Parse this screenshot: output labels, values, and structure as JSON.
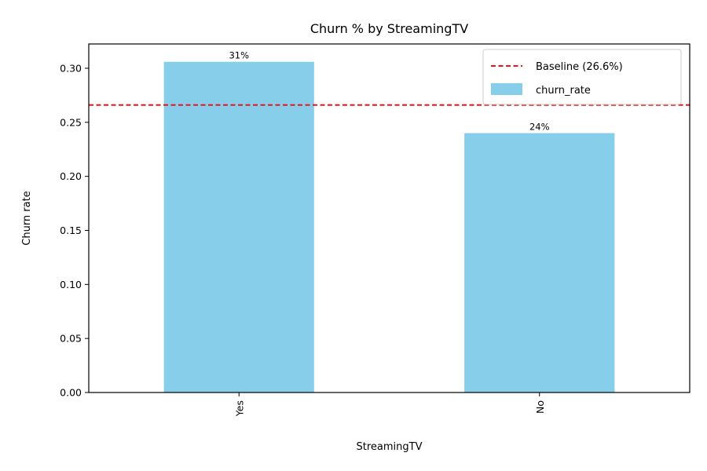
{
  "chart_data": {
    "type": "bar",
    "title": "Churn % by StreamingTV",
    "xlabel": "StreamingTV",
    "ylabel": "Churn rate",
    "categories": [
      "Yes",
      "No"
    ],
    "series": [
      {
        "name": "churn_rate",
        "values": [
          0.306,
          0.24
        ],
        "color": "#87CEEB"
      }
    ],
    "data_labels": [
      "31%",
      "24%"
    ],
    "baseline": {
      "label": "Baseline (26.6%)",
      "value": 0.266,
      "color": "#e8141c",
      "style": "dashed"
    },
    "ylim": [
      0,
      0.3225
    ],
    "yticks": [
      0.0,
      0.05,
      0.1,
      0.15,
      0.2,
      0.25,
      0.3
    ],
    "ytick_labels": [
      "0.00",
      "0.05",
      "0.10",
      "0.15",
      "0.20",
      "0.25",
      "0.30"
    ],
    "xtick_rotation": "vertical",
    "legend": "top-right",
    "grid": false
  }
}
